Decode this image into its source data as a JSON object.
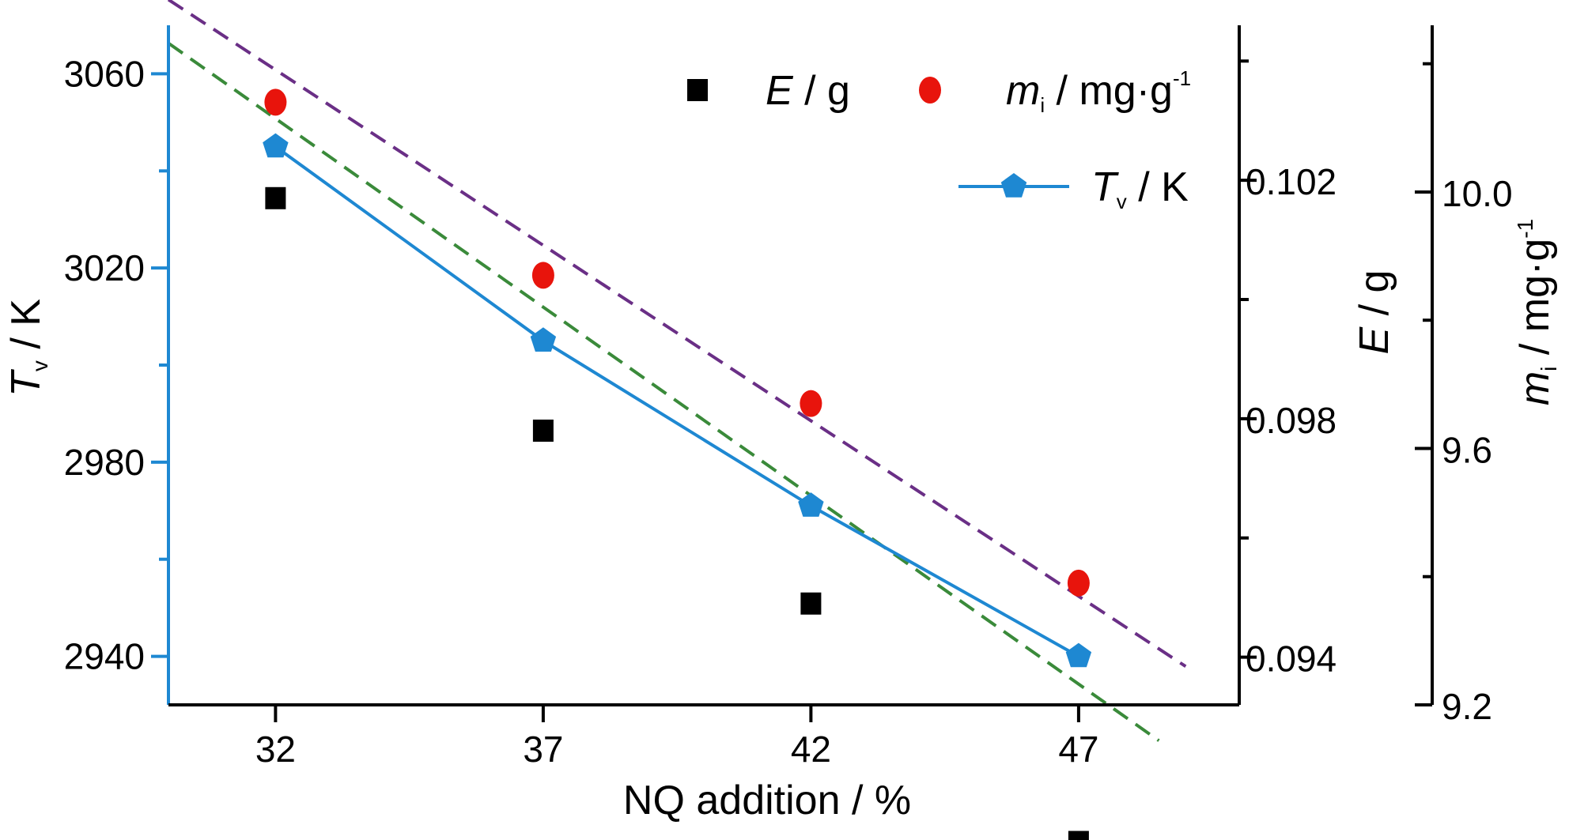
{
  "chart_data": {
    "type": "line",
    "xlabel": "NQ addition / %",
    "x": [
      32,
      37,
      42,
      47
    ],
    "xticks": [
      "32",
      "37",
      "42",
      "47"
    ],
    "xlim": [
      30,
      50
    ],
    "axes": {
      "left": {
        "label_main": "T",
        "label_sub": "v",
        "label_rest": " / K",
        "ylim": [
          2930,
          3070
        ],
        "ticks": [
          "2940",
          "2980",
          "3020",
          "3060"
        ],
        "color": "#1e88d2"
      },
      "right1": {
        "label_main": "E",
        "label_rest": " / g",
        "ylim": [
          0.0932,
          0.1046
        ],
        "ticks": [
          "0.094",
          "0.098",
          "0.102"
        ]
      },
      "right2": {
        "label_main": "m",
        "label_sub": "i",
        "label_rest": " / mg·g",
        "label_sup": "-1",
        "ylim": [
          9.2,
          10.26
        ],
        "ticks": [
          "9.2",
          "9.6",
          "10.0"
        ]
      }
    },
    "series": [
      {
        "name_main": "E",
        "name_rest": " / g",
        "axis": "right1",
        "marker": "square",
        "color": "#000000",
        "values": [
          0.1017,
          0.0978,
          0.0949,
          0.0909
        ],
        "fit": {
          "from": [
            30,
            0.1043
          ],
          "to": [
            48.5,
            0.0926
          ],
          "color": "#3a8a3a"
        }
      },
      {
        "name_main": "m",
        "name_sub": "i",
        "name_rest": " / mg·g",
        "name_sup": "-1",
        "axis": "right2",
        "marker": "circle",
        "color": "#e8140c",
        "values": [
          10.14,
          9.87,
          9.67,
          9.39
        ],
        "fit": {
          "from": [
            30,
            10.3
          ],
          "to": [
            49,
            9.26
          ],
          "color": "#6a2f86"
        }
      },
      {
        "name_main": "T",
        "name_sub": "v",
        "name_rest": " / K",
        "axis": "left",
        "marker": "pentagon",
        "color": "#1e88d2",
        "connect": true,
        "values": [
          3045,
          3005,
          2971,
          2940
        ]
      }
    ]
  }
}
